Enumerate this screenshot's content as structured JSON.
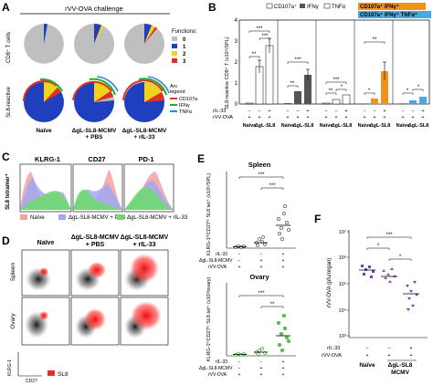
{
  "panels": {
    "A": {
      "letter": "A",
      "title": "rVV-OVA challenge",
      "row1_label": "CD8⁺ T cells",
      "row2_label": "SL8-reactive",
      "functions_title": "Functions:",
      "function_levels": [
        "0",
        "1",
        "2",
        "3"
      ],
      "function_colors": [
        "#bfbfbf",
        "#1f3fbf",
        "#f2d21c",
        "#e03020"
      ],
      "arc_legend_title": "Arc legend",
      "arc_items": [
        {
          "label": "CD107a",
          "color": "#e03020"
        },
        {
          "label": "IFNγ",
          "color": "#2aaa2a"
        },
        {
          "label": "TNFα",
          "color": "#2a8ad8"
        }
      ],
      "columns": [
        "Naïve",
        "ΔgL-SL8-MCMV + PBS",
        "ΔgL-SL8-MCMV + rIL-33"
      ],
      "col_line1": [
        "Naïve",
        "ΔgL-SL8-MCMV",
        "ΔgL-SL8-MCMV"
      ],
      "col_line2": [
        "",
        "+ PBS",
        "+ rIL-33"
      ]
    },
    "B": {
      "letter": "B",
      "ylabel": "SL8-reactive CD8⁺ T (x10⁵/SPL)",
      "legend": [
        {
          "label": "CD107a⁺",
          "color": "#ffffff"
        },
        {
          "label": "IFNγ",
          "color": "#555555"
        },
        {
          "label": "TNFα",
          "color": "#ffffff"
        },
        {
          "label": "CD107a⁺ IFNγ⁺",
          "color": "#f0921c"
        },
        {
          "label": "CD107a⁺ IFNγ⁺ TNFα⁺",
          "color": "#4aa8e0"
        }
      ],
      "row_ril33": "rIL-33",
      "row_rvv": "rVV-OVA",
      "ril33_signs": [
        "−",
        "−",
        "+"
      ],
      "rvv_signs": [
        "+",
        "+",
        "+"
      ],
      "group_labels": [
        "Naïve",
        "ΔgL-SL8"
      ],
      "yticks": [
        "0",
        "1",
        "2",
        "3",
        "4"
      ],
      "sig": [
        "***",
        "**",
        "***",
        "**",
        "***",
        "**",
        "*",
        "***",
        "**",
        "*",
        "**",
        "*",
        "*",
        "*"
      ]
    },
    "C": {
      "letter": "C",
      "markers": [
        "KLRG-1",
        "CD27",
        "PD-1"
      ],
      "ylabel": "SL8 tetramer⁺",
      "legend": [
        {
          "label": "Naïve",
          "color": "#f5a0a0"
        },
        {
          "label": "ΔgL-SL8-MCMV + PBS",
          "color": "#a0a8f0"
        },
        {
          "label": "ΔgL-SL8-MCMV + rIL-33",
          "color": "#70d870"
        }
      ]
    },
    "D": {
      "letter": "D",
      "columns": [
        "Naïve",
        "ΔgL-SL8-MCMV + PBS",
        "ΔgL-SL8-MCMV + rIL-33"
      ],
      "col_line1": [
        "Naïve",
        "ΔgL-SL8-MCMV",
        "ΔgL-SL8-MCMV"
      ],
      "col_line2": [
        "",
        "+ PBS",
        "+ rIL-33"
      ],
      "rows": [
        "Spleen",
        "Ovary"
      ],
      "xaxis": "CD27",
      "yaxis": "KLRG-1",
      "legend": "SL8"
    },
    "E": {
      "letter": "E",
      "spleen": {
        "title": "Spleen",
        "ylabel": "KLRG-1ʰⁱCD27ˡᵒ SL8 tet⁺ (x10⁵/SPL)",
        "sig": [
          "***",
          "***"
        ],
        "points": [
          [
            0.02,
            0.03,
            0.01,
            0.02,
            0.04,
            0.02,
            0.03,
            0.01
          ],
          [
            0.05,
            0.08,
            0.12,
            0.15,
            0.06,
            0.1,
            0.07,
            0.09
          ],
          [
            0.2,
            0.35,
            0.5,
            0.6,
            0.25,
            0.4,
            0.55,
            0.7
          ]
        ]
      },
      "ovary": {
        "title": "Ovary",
        "ylabel": "KLRG-1ʰⁱCD27ˡᵒ SL8 tet⁺ (x10³/ovary)",
        "sig": [
          "***",
          "**"
        ],
        "points": [
          [
            0.01,
            0.02,
            0.01,
            0.03,
            0.02,
            0.01,
            0.02,
            0.01
          ],
          [
            0.05,
            0.1,
            0.08,
            0.12,
            0.06,
            0.15,
            0.09,
            0.07
          ],
          [
            0.4,
            0.8,
            1.2,
            1.6,
            2.0,
            1.0,
            0.6,
            1.4
          ]
        ]
      },
      "rows": [
        "rIL-33",
        "ΔgL-SL8-MCMV",
        "rVV-OVA"
      ],
      "signs": [
        [
          "−",
          "−",
          "+"
        ],
        [
          "−",
          "+",
          "+"
        ],
        [
          "+",
          "+",
          "+"
        ]
      ]
    },
    "F": {
      "letter": "F",
      "ylabel": "rVV-OVA (pfu/organ)",
      "yticks": [
        "10³",
        "10⁴",
        "10⁵",
        "10⁶",
        "10⁷"
      ],
      "sig": [
        "***",
        "*",
        "*"
      ],
      "rows": [
        "rIL-33",
        "rVV-OVA"
      ],
      "signs": [
        [
          "−",
          "−",
          "+"
        ],
        [
          "+",
          "+",
          "+"
        ]
      ],
      "group_labels": [
        "Naïve",
        "ΔgL-SL8",
        "MCMV"
      ],
      "point_color": "#7a3cb0"
    }
  }
}
